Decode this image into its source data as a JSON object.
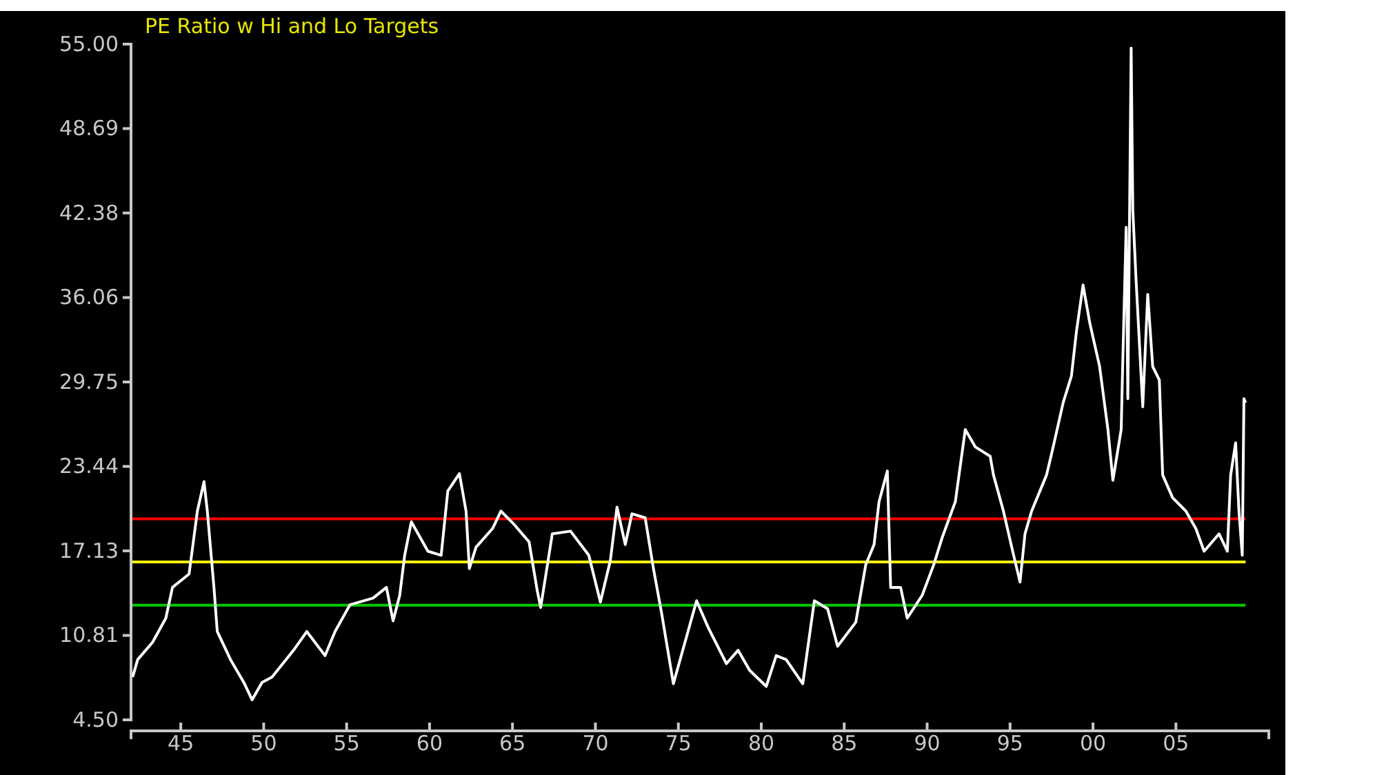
{
  "chart_data": {
    "type": "line",
    "title": "PE Ratio w Hi and Lo Targets",
    "x": [
      1942.1,
      1942.4,
      1943.3,
      1944.1,
      1944.5,
      1945.5,
      1946.0,
      1946.4,
      1946.6,
      1947.0,
      1947.2,
      1948.0,
      1948.8,
      1949.3,
      1949.9,
      1950.5,
      1951.8,
      1952.6,
      1953.7,
      1954.3,
      1955.2,
      1956.6,
      1957.4,
      1957.8,
      1958.2,
      1958.5,
      1958.9,
      1959.9,
      1960.7,
      1961.1,
      1961.8,
      1962.2,
      1962.4,
      1962.8,
      1963.8,
      1964.3,
      1965.1,
      1966.0,
      1966.5,
      1966.7,
      1967.4,
      1968.5,
      1969.6,
      1970.3,
      1970.9,
      1971.3,
      1971.8,
      1972.2,
      1973.0,
      1973.5,
      1974.0,
      1974.7,
      1975.4,
      1976.1,
      1976.8,
      1977.9,
      1978.6,
      1979.3,
      1980.3,
      1980.9,
      1981.5,
      1982.5,
      1983.2,
      1984.0,
      1984.6,
      1985.7,
      1986.3,
      1986.8,
      1987.1,
      1987.6,
      1987.8,
      1988.4,
      1988.8,
      1989.7,
      1990.4,
      1990.9,
      1991.7,
      1992.3,
      1992.9,
      1993.8,
      1994.0,
      1994.6,
      1995.1,
      1995.6,
      1995.9,
      1996.3,
      1997.2,
      1997.6,
      1998.2,
      1998.7,
      1999.0,
      1999.4,
      1999.8,
      2000.4,
      2000.9,
      2001.2,
      2001.7,
      2001.8,
      2002.0,
      2002.1,
      2002.3,
      2002.4,
      2002.6,
      2003.0,
      2003.3,
      2003.6,
      2004.0,
      2004.2,
      2004.8,
      2005.6,
      2006.2,
      2006.7,
      2007.6,
      2008.1,
      2008.3,
      2008.6,
      2008.8,
      2009.0,
      2009.1,
      2009.2
    ],
    "series": [
      {
        "color": "#ffffff",
        "values": [
          7.7,
          9.0,
          10.3,
          12.1,
          14.4,
          15.4,
          20.1,
          22.3,
          20.1,
          14.4,
          11.1,
          9.0,
          7.3,
          6.0,
          7.3,
          7.7,
          9.7,
          11.1,
          9.3,
          11.1,
          13.1,
          13.6,
          14.4,
          11.9,
          13.8,
          16.8,
          19.3,
          17.1,
          16.8,
          21.6,
          22.9,
          20.1,
          15.8,
          17.4,
          18.8,
          20.1,
          19.1,
          17.8,
          14.1,
          12.9,
          18.4,
          18.6,
          16.8,
          13.3,
          16.4,
          20.4,
          17.6,
          19.9,
          19.6,
          15.8,
          12.4,
          7.2,
          10.3,
          13.4,
          11.4,
          8.7,
          9.7,
          8.2,
          7.0,
          9.3,
          9.0,
          7.2,
          13.4,
          12.8,
          10.0,
          11.8,
          16.1,
          17.6,
          20.8,
          23.1,
          14.4,
          14.4,
          12.1,
          13.8,
          16.1,
          18.1,
          20.8,
          26.2,
          24.9,
          24.2,
          22.8,
          20.1,
          17.4,
          14.8,
          18.4,
          20.1,
          22.8,
          24.9,
          28.2,
          30.2,
          33.5,
          37.0,
          34.2,
          30.9,
          26.2,
          22.4,
          26.2,
          31.5,
          41.3,
          28.5,
          54.7,
          42.6,
          37.3,
          27.9,
          36.3,
          30.9,
          29.9,
          22.8,
          21.1,
          20.1,
          18.8,
          17.1,
          18.4,
          17.1,
          22.8,
          25.2,
          20.1,
          16.8,
          28.5,
          28.2
        ]
      }
    ],
    "xlim": [
      1942.0,
      2010.6
    ],
    "xticks": [
      {
        "value": 1945,
        "label": "45"
      },
      {
        "value": 1950,
        "label": "50"
      },
      {
        "value": 1955,
        "label": "55"
      },
      {
        "value": 1960,
        "label": "60"
      },
      {
        "value": 1965,
        "label": "65"
      },
      {
        "value": 1970,
        "label": "70"
      },
      {
        "value": 1975,
        "label": "75"
      },
      {
        "value": 1980,
        "label": "80"
      },
      {
        "value": 1985,
        "label": "85"
      },
      {
        "value": 1990,
        "label": "90"
      },
      {
        "value": 1995,
        "label": "95"
      },
      {
        "value": 2000,
        "label": "00"
      },
      {
        "value": 2005,
        "label": "05"
      }
    ],
    "ylim": [
      4.5,
      55.0
    ],
    "yticks": [
      {
        "value": 4.5,
        "label": "4.50"
      },
      {
        "value": 10.81,
        "label": "10.81"
      },
      {
        "value": 17.13,
        "label": "17.13"
      },
      {
        "value": 23.44,
        "label": "23.44"
      },
      {
        "value": 29.75,
        "label": "29.75"
      },
      {
        "value": 36.06,
        "label": "36.06"
      },
      {
        "value": 42.38,
        "label": "42.38"
      },
      {
        "value": 48.69,
        "label": "48.69"
      },
      {
        "value": 55.0,
        "label": "55.00"
      }
    ],
    "ref_lines": [
      {
        "axis": "y",
        "value": 19.52,
        "color": "#ff0000"
      },
      {
        "axis": "y",
        "value": 16.3,
        "color": "#ffff00"
      },
      {
        "axis": "y",
        "value": 13.07,
        "color": "#00cc00"
      }
    ],
    "grid": false,
    "marker": "none",
    "line_style": "solid"
  }
}
